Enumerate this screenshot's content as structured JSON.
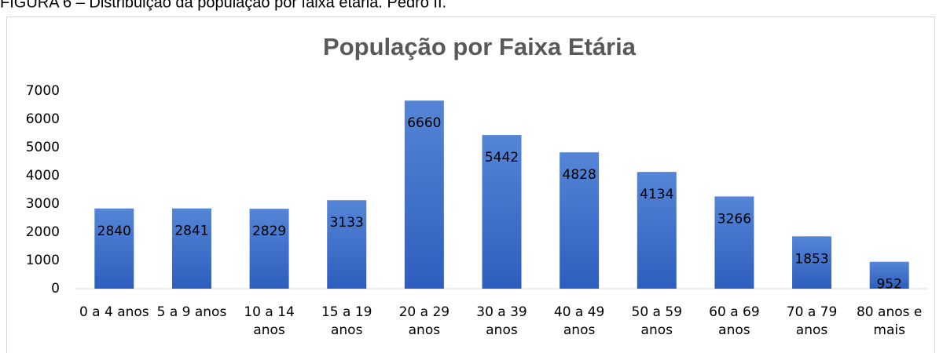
{
  "chart_data": {
    "type": "bar",
    "caption": "FIGURA 6 – Distribuição da população por faixa etária. Pedro II.",
    "title": "População por Faixa Etária",
    "categories": [
      "0 a 4 anos",
      "5 a 9 anos",
      "10 a 14 anos",
      "15 a 19 anos",
      "20 a 29 anos",
      "30 a 39 anos",
      "40 a 49 anos",
      "50 a 59 anos",
      "60 a 69 anos",
      "70 a 79 anos",
      "80 anos e mais"
    ],
    "values": [
      2840,
      2841,
      2829,
      3133,
      6660,
      5442,
      4828,
      4134,
      3266,
      1853,
      952
    ],
    "color": "#4472c4",
    "ylim": [
      0,
      7000
    ],
    "yticks": [
      0,
      1000,
      2000,
      3000,
      4000,
      5000,
      6000,
      7000
    ],
    "grid": false
  }
}
